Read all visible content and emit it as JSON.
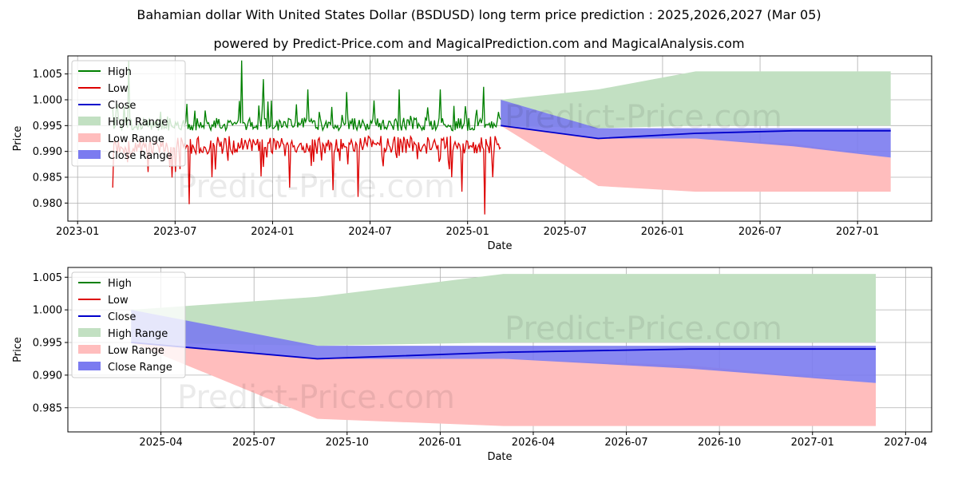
{
  "header": {
    "title": "Bahamian dollar With United States Dollar (BSDUSD) long term price prediction : 2025,2026,2027 (Mar 05)",
    "subtitle": "powered by Predict-Price.com and MagicalPrediction.com and MagicalAnalysis.com"
  },
  "watermark": "Predict-Price.com",
  "colors": {
    "high": "#008000",
    "low": "#dd0000",
    "close": "#0000cc",
    "high_range": "#c2e0c2",
    "low_range": "#ffbdbd",
    "close_range": "#7b7bf0",
    "grid": "#b0b0b0"
  },
  "chart_data": [
    {
      "type": "line",
      "name": "overview",
      "xlabel": "Date",
      "ylabel": "Price",
      "ylim": [
        0.9765,
        1.0085
      ],
      "xlim": [
        2022.95,
        2027.38
      ],
      "x_ticks": [
        {
          "value": 2023.0,
          "label": "2023-01"
        },
        {
          "value": 2023.5,
          "label": "2023-07"
        },
        {
          "value": 2024.0,
          "label": "2024-01"
        },
        {
          "value": 2024.5,
          "label": "2024-07"
        },
        {
          "value": 2025.0,
          "label": "2025-01"
        },
        {
          "value": 2025.5,
          "label": "2025-07"
        },
        {
          "value": 2026.0,
          "label": "2026-01"
        },
        {
          "value": 2026.5,
          "label": "2026-07"
        },
        {
          "value": 2027.0,
          "label": "2027-01"
        }
      ],
      "y_ticks": [
        {
          "value": 0.98,
          "label": "0.980"
        },
        {
          "value": 0.985,
          "label": "0.985"
        },
        {
          "value": 0.99,
          "label": "0.990"
        },
        {
          "value": 0.995,
          "label": "0.995"
        },
        {
          "value": 1.0,
          "label": "1.000"
        },
        {
          "value": 1.005,
          "label": "1.005"
        }
      ],
      "legend": {
        "position": "top-left",
        "entries": [
          {
            "label": "High",
            "kind": "line",
            "color_key": "high"
          },
          {
            "label": "Low",
            "kind": "line",
            "color_key": "low"
          },
          {
            "label": "Close",
            "kind": "line",
            "color_key": "close"
          },
          {
            "label": "High Range",
            "kind": "patch",
            "color_key": "high_range"
          },
          {
            "label": "Low Range",
            "kind": "patch",
            "color_key": "low_range"
          },
          {
            "label": "Close Range",
            "kind": "patch",
            "color_key": "close_range"
          }
        ]
      },
      "history": {
        "x_start": 2023.18,
        "x_end": 2025.17,
        "base": 0.9935,
        "high_spikes": [
          [
            2023.26,
            1.0075
          ],
          [
            2023.84,
            1.0076
          ],
          [
            2023.95,
            1.004
          ],
          [
            2024.18,
            1.002
          ],
          [
            2024.38,
            1.0015
          ],
          [
            2024.65,
            1.002
          ],
          [
            2024.86,
            1.002
          ],
          [
            2025.08,
            1.0025
          ]
        ],
        "low_spikes": [
          [
            2023.18,
            0.983
          ],
          [
            2023.36,
            0.986
          ],
          [
            2023.47,
            0.987
          ],
          [
            2023.57,
            0.9798
          ],
          [
            2023.69,
            0.985
          ],
          [
            2023.95,
            0.987
          ],
          [
            2024.09,
            0.983
          ],
          [
            2024.31,
            0.9825
          ],
          [
            2024.44,
            0.9812
          ],
          [
            2024.74,
            0.9885
          ],
          [
            2024.92,
            0.985
          ],
          [
            2024.97,
            0.9822
          ],
          [
            2025.09,
            0.9778
          ],
          [
            2025.13,
            0.985
          ]
        ]
      },
      "forecast": {
        "x": [
          2025.17,
          2025.67,
          2026.17,
          2026.67,
          2027.17
        ],
        "close": [
          0.995,
          0.9925,
          0.9935,
          0.994,
          0.994
        ],
        "close_range_top": [
          1.0,
          0.9945,
          0.9945,
          0.9945,
          0.9945
        ],
        "close_range_bottom": [
          0.995,
          0.9925,
          0.9925,
          0.991,
          0.9888
        ],
        "high_range_top": [
          1.0,
          1.002,
          1.0055,
          1.0055,
          1.0055
        ],
        "high_range_bottom": [
          0.995,
          0.9945,
          0.995,
          0.995,
          0.995
        ],
        "low_range_top": [
          0.995,
          0.9925,
          0.9925,
          0.9915,
          0.9888
        ],
        "low_range_bottom": [
          0.995,
          0.9833,
          0.9822,
          0.9822,
          0.9822
        ]
      }
    },
    {
      "type": "line",
      "name": "forecast-zoom",
      "xlabel": "Date",
      "ylabel": "Price",
      "ylim": [
        0.9813,
        1.0065
      ],
      "xlim": [
        2025.0,
        2027.32
      ],
      "x_ticks": [
        {
          "value": 2025.25,
          "label": "2025-04"
        },
        {
          "value": 2025.5,
          "label": "2025-07"
        },
        {
          "value": 2025.75,
          "label": "2025-10"
        },
        {
          "value": 2026.0,
          "label": "2026-01"
        },
        {
          "value": 2026.25,
          "label": "2026-04"
        },
        {
          "value": 2026.5,
          "label": "2026-07"
        },
        {
          "value": 2026.75,
          "label": "2026-10"
        },
        {
          "value": 2027.0,
          "label": "2027-01"
        },
        {
          "value": 2027.25,
          "label": "2027-04"
        }
      ],
      "y_ticks": [
        {
          "value": 0.985,
          "label": "0.985"
        },
        {
          "value": 0.99,
          "label": "0.990"
        },
        {
          "value": 0.995,
          "label": "0.995"
        },
        {
          "value": 1.0,
          "label": "1.000"
        },
        {
          "value": 1.005,
          "label": "1.005"
        }
      ],
      "legend": {
        "position": "top-left",
        "entries": [
          {
            "label": "High",
            "kind": "line",
            "color_key": "high"
          },
          {
            "label": "Low",
            "kind": "line",
            "color_key": "low"
          },
          {
            "label": "Close",
            "kind": "line",
            "color_key": "close"
          },
          {
            "label": "High Range",
            "kind": "patch",
            "color_key": "high_range"
          },
          {
            "label": "Low Range",
            "kind": "patch",
            "color_key": "low_range"
          },
          {
            "label": "Close Range",
            "kind": "patch",
            "color_key": "close_range"
          }
        ]
      },
      "forecast": {
        "x": [
          2025.17,
          2025.67,
          2026.17,
          2026.67,
          2027.17
        ],
        "close": [
          0.995,
          0.9925,
          0.9935,
          0.994,
          0.994
        ],
        "close_range_top": [
          1.0,
          0.9945,
          0.9945,
          0.9945,
          0.9945
        ],
        "close_range_bottom": [
          0.995,
          0.9925,
          0.9925,
          0.991,
          0.9888
        ],
        "high_range_top": [
          1.0,
          1.002,
          1.0055,
          1.0055,
          1.0055
        ],
        "high_range_bottom": [
          0.995,
          0.9945,
          0.995,
          0.995,
          0.995
        ],
        "low_range_top": [
          0.995,
          0.9925,
          0.9925,
          0.9915,
          0.9888
        ],
        "low_range_bottom": [
          0.995,
          0.9833,
          0.9822,
          0.9822,
          0.9822
        ]
      }
    }
  ]
}
